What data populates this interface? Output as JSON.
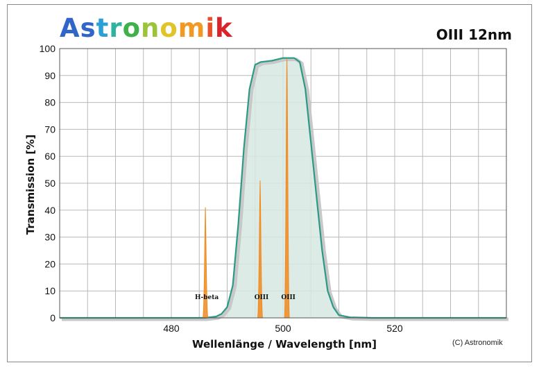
{
  "brand": {
    "logo_text": "Astronomik",
    "logo_colors": [
      "#2f66c8",
      "#2f66c8",
      "#2aa0d8",
      "#2fb3a0",
      "#3fb04a",
      "#9cc43a",
      "#e0c42a",
      "#f09a25",
      "#e8502a",
      "#d8242a"
    ]
  },
  "filter_title": "OIII 12nm",
  "copyright": "(C) Astronomik",
  "chart_data": {
    "type": "area",
    "xlabel": "Wellenlänge / Wavelength [nm]",
    "ylabel": "Transmission [%]",
    "xlim": [
      460,
      540
    ],
    "ylim": [
      0,
      100
    ],
    "x_ticks": [
      480,
      500,
      520
    ],
    "y_ticks": [
      0,
      10,
      20,
      30,
      40,
      50,
      60,
      70,
      80,
      90,
      100
    ],
    "grid": true,
    "colors": {
      "filter": "#2a9a86",
      "filter_fill": "#d7e8e2",
      "lines": "#f08a1e",
      "grid": "#b8b8b8"
    },
    "series": [
      {
        "x": [
          460,
          486,
          488,
          489,
          490,
          491,
          492,
          493,
          494,
          495,
          496,
          498,
          500,
          502,
          503,
          504,
          505,
          506,
          507,
          508,
          509,
          510,
          512,
          516,
          540
        ],
        "y": [
          0,
          0,
          0.5,
          1.5,
          4,
          12,
          35,
          63,
          85,
          94,
          95,
          95.5,
          96.5,
          96.5,
          95,
          85,
          65,
          45,
          25,
          10,
          4,
          1,
          0.2,
          0,
          0
        ]
      }
    ],
    "emission_lines": [
      {
        "name": "H-beta",
        "wavelength": 486.1,
        "peak": 41
      },
      {
        "name": "OIII",
        "wavelength": 495.9,
        "peak": 51
      },
      {
        "name": "OIII",
        "wavelength": 500.7,
        "peak": 96
      }
    ]
  }
}
